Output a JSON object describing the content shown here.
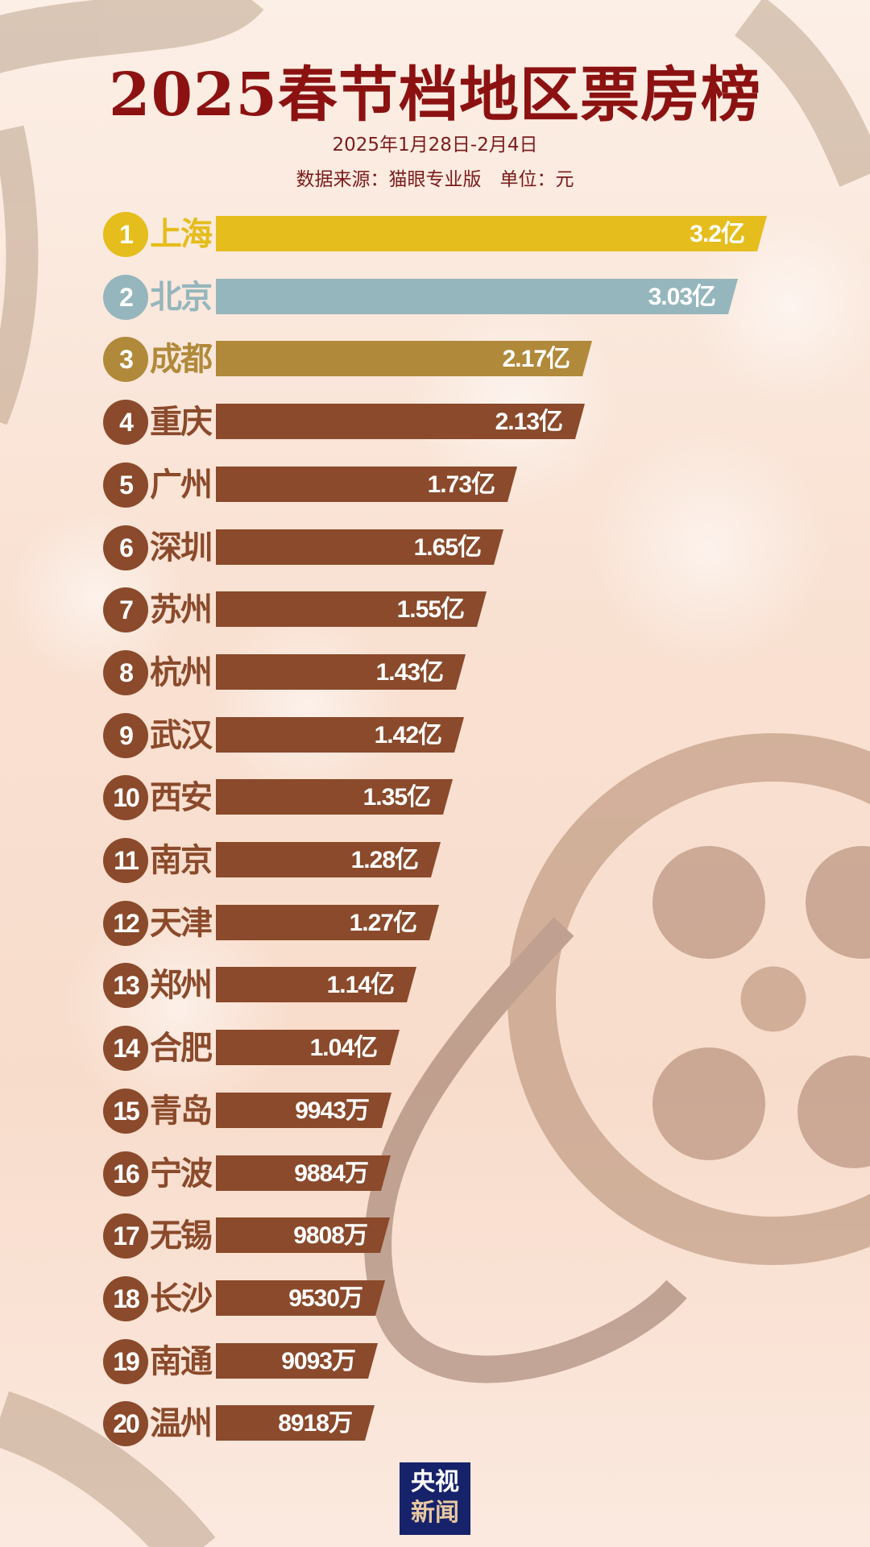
{
  "chart_data": {
    "type": "bar",
    "orientation": "horizontal",
    "title": "2025春节档地区票房榜",
    "subtitle": "2025年1月28日-2月4日",
    "source_line": "数据来源：猫眼专业版　单位：元",
    "categories": [
      "上海",
      "北京",
      "成都",
      "重庆",
      "广州",
      "深圳",
      "苏州",
      "杭州",
      "武汉",
      "西安",
      "南京",
      "天津",
      "郑州",
      "合肥",
      "青岛",
      "宁波",
      "无锡",
      "长沙",
      "南通",
      "温州"
    ],
    "ranks": [
      "1",
      "2",
      "3",
      "4",
      "5",
      "6",
      "7",
      "8",
      "9",
      "10",
      "11",
      "12",
      "13",
      "14",
      "15",
      "16",
      "17",
      "18",
      "19",
      "20"
    ],
    "values_yi": [
      3.2,
      3.03,
      2.17,
      2.13,
      1.73,
      1.65,
      1.55,
      1.43,
      1.42,
      1.35,
      1.28,
      1.27,
      1.14,
      1.04,
      0.9943,
      0.9884,
      0.9808,
      0.953,
      0.9093,
      0.8918
    ],
    "labels": [
      "3.2亿",
      "3.03亿",
      "2.17亿",
      "2.13亿",
      "1.73亿",
      "1.65亿",
      "1.55亿",
      "1.43亿",
      "1.42亿",
      "1.35亿",
      "1.28亿",
      "1.27亿",
      "1.14亿",
      "1.04亿",
      "9943万",
      "9884万",
      "9808万",
      "9530万",
      "9093万",
      "8918万"
    ],
    "colors": [
      "#e5bd1c",
      "#95b6bc",
      "#b0893a",
      "#8a4a2b",
      "#8a4a2b",
      "#8a4a2b",
      "#8a4a2b",
      "#8a4a2b",
      "#8a4a2b",
      "#8a4a2b",
      "#8a4a2b",
      "#8a4a2b",
      "#8a4a2b",
      "#8a4a2b",
      "#8a4a2b",
      "#8a4a2b",
      "#8a4a2b",
      "#8a4a2b",
      "#8a4a2b",
      "#8a4a2b"
    ],
    "grid": false,
    "legend": "none"
  },
  "logo": {
    "line1": "央视",
    "line2": "新闻"
  }
}
